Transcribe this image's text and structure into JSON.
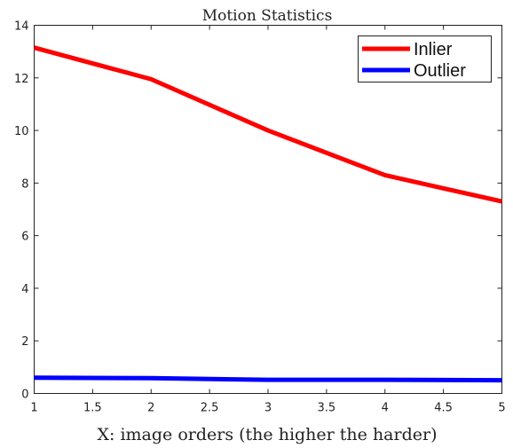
{
  "chart_data": {
    "type": "line",
    "title": "Motion Statistics",
    "xlabel": "X: image orders (the higher the harder)",
    "ylabel": "",
    "x": [
      1,
      2,
      3,
      4,
      5
    ],
    "xlim": [
      1,
      5
    ],
    "ylim": [
      0,
      14
    ],
    "xticks": [
      "1",
      "1.5",
      "2",
      "2.5",
      "3",
      "3.5",
      "4",
      "4.5",
      "5"
    ],
    "yticks": [
      "0",
      "2",
      "4",
      "6",
      "8",
      "10",
      "12",
      "14"
    ],
    "grid": false,
    "legend_position": "top-right",
    "series": [
      {
        "name": "Inlier",
        "color": "#ff0000",
        "values": [
          13.15,
          11.95,
          10.0,
          8.3,
          7.3
        ]
      },
      {
        "name": "Outlier",
        "color": "#0000ff",
        "values": [
          0.6,
          0.58,
          0.52,
          0.52,
          0.5
        ]
      }
    ]
  }
}
